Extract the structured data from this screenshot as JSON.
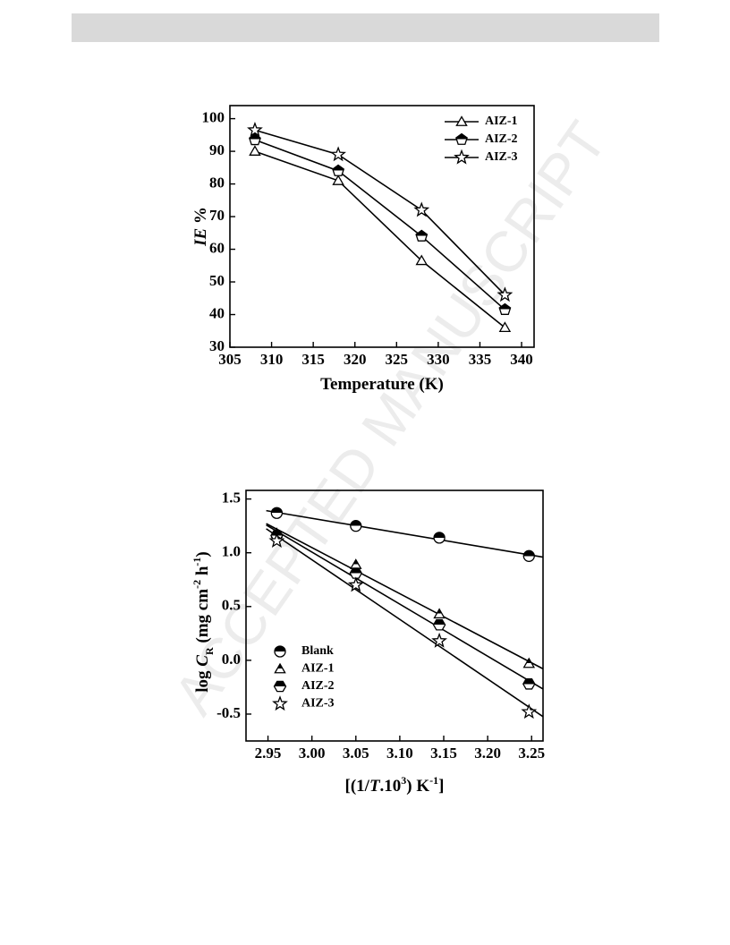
{
  "watermark": "ACCEPTED MANUSCRIPT",
  "chart_data": [
    {
      "type": "line",
      "xlabel": [
        "Temperature (K)"
      ],
      "ylabel": [
        "IE",
        " %"
      ],
      "x": [
        308,
        318,
        328,
        338
      ],
      "series": [
        {
          "name": "AIZ-1",
          "color": "#000000",
          "marker": "triangle",
          "fill": "open",
          "values": [
            90,
            81,
            56.5,
            36
          ]
        },
        {
          "name": "AIZ-2",
          "color": "#000000",
          "marker": "pentagon",
          "fill": "half",
          "values": [
            93.5,
            84,
            64,
            41.5
          ]
        },
        {
          "name": "AIZ-3",
          "color": "#000000",
          "marker": "star",
          "fill": "open",
          "values": [
            96.5,
            89,
            72,
            46
          ]
        }
      ],
      "xlim": [
        305,
        341.5
      ],
      "xticks": [
        305,
        310,
        315,
        320,
        325,
        330,
        335,
        340
      ],
      "ylim": [
        30,
        104
      ],
      "yticks": [
        30,
        40,
        50,
        60,
        70,
        80,
        90,
        100
      ],
      "legend": "upper right"
    },
    {
      "type": "scatter",
      "xlabel": [
        "[(1/",
        "T",
        ".10",
        "3",
        ") K",
        "-1",
        "]"
      ],
      "ylabel": [
        "log ",
        "C",
        "R",
        " (mg cm",
        "-2",
        " h",
        "-1",
        ")"
      ],
      "x": [
        2.96,
        3.05,
        3.145,
        3.247
      ],
      "trendline": "linear",
      "series": [
        {
          "name": "Blank",
          "color": "#000000",
          "marker": "circle",
          "fill": "half",
          "values": [
            1.37,
            1.25,
            1.14,
            0.97
          ]
        },
        {
          "name": "AIZ-1",
          "color": "#000000",
          "marker": "triangle",
          "fill": "half",
          "values": [
            1.18,
            0.89,
            0.43,
            -0.03
          ]
        },
        {
          "name": "AIZ-2",
          "color": "#000000",
          "marker": "hexagon",
          "fill": "half",
          "values": [
            1.16,
            0.81,
            0.33,
            -0.22
          ]
        },
        {
          "name": "AIZ-3",
          "color": "#000000",
          "marker": "star",
          "fill": "open",
          "values": [
            1.11,
            0.7,
            0.18,
            -0.48
          ]
        }
      ],
      "xlim": [
        2.925,
        3.263
      ],
      "xticks": [
        2.95,
        {
          "value": 3,
          "label": "3.00"
        },
        3.05,
        {
          "value": 3.1,
          "label": "3.10"
        },
        3.15,
        {
          "value": 3.2,
          "label": "3.20"
        },
        3.25
      ],
      "ylim": [
        -0.75,
        1.58
      ],
      "yticks": [
        -0.5,
        {
          "value": 0,
          "label": "0.0"
        },
        0.5,
        {
          "value": 1,
          "label": "1.0"
        },
        1.5
      ],
      "legend": "lower left"
    }
  ]
}
